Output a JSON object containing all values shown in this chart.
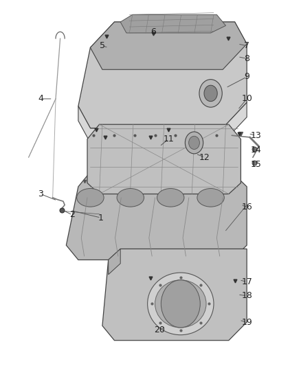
{
  "background_color": "#ffffff",
  "fig_width": 4.38,
  "fig_height": 5.33,
  "dpi": 100,
  "label_fontsize": 9,
  "label_color": "#222222",
  "line_color": "#555555",
  "line_width": 0.7,
  "leaders": {
    "1": [
      0.335,
      0.405,
      0.235,
      0.425
    ],
    "2": [
      0.24,
      0.413,
      0.21,
      0.425
    ],
    "3": [
      0.135,
      0.47,
      0.19,
      0.452
    ],
    "4": [
      0.135,
      0.73,
      0.175,
      0.73
    ],
    "5": [
      0.34,
      0.875,
      0.36,
      0.87
    ],
    "6": [
      0.51,
      0.912,
      0.51,
      0.9
    ],
    "7": [
      0.82,
      0.875,
      0.79,
      0.88
    ],
    "8": [
      0.82,
      0.84,
      0.79,
      0.845
    ],
    "9": [
      0.82,
      0.79,
      0.75,
      0.76
    ],
    "10": [
      0.82,
      0.73,
      0.79,
      0.7
    ],
    "11": [
      0.56,
      0.62,
      0.53,
      0.6
    ],
    "12": [
      0.68,
      0.57,
      0.65,
      0.58
    ],
    "13": [
      0.85,
      0.63,
      0.825,
      0.635
    ],
    "14": [
      0.85,
      0.59,
      0.855,
      0.592
    ],
    "15": [
      0.85,
      0.55,
      0.855,
      0.555
    ],
    "16": [
      0.82,
      0.435,
      0.8,
      0.44
    ],
    "17": [
      0.82,
      0.23,
      0.795,
      0.235
    ],
    "18": [
      0.82,
      0.192,
      0.79,
      0.195
    ],
    "19": [
      0.82,
      0.12,
      0.795,
      0.125
    ],
    "20": [
      0.53,
      0.098,
      0.55,
      0.108
    ]
  }
}
